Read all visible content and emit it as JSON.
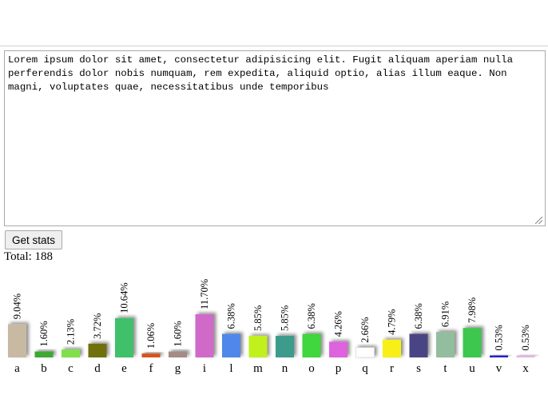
{
  "editor": {
    "text": "Lorem ipsum dolor sit amet, consectetur adipisicing elit. Fugit aliquam aperiam nulla perferendis dolor nobis numquam, rem expedita, aliquid optio, alias illum eaque. Non magni, voluptates quae, necessitatibus unde temporibus"
  },
  "button": {
    "label": "Get stats"
  },
  "total": {
    "label": "Total: 188"
  },
  "chart_data": {
    "type": "bar",
    "title": "",
    "xlabel": "",
    "ylabel": "",
    "ylim": [
      0,
      12
    ],
    "categories": [
      "a",
      "b",
      "c",
      "d",
      "e",
      "f",
      "g",
      "i",
      "l",
      "m",
      "n",
      "o",
      "p",
      "q",
      "r",
      "s",
      "t",
      "u",
      "v",
      "x"
    ],
    "values": [
      9.04,
      1.6,
      2.13,
      3.72,
      10.64,
      1.06,
      1.6,
      11.7,
      6.38,
      5.85,
      5.85,
      6.38,
      4.26,
      2.66,
      4.79,
      6.38,
      6.91,
      7.98,
      0.53,
      0.53
    ],
    "labels": [
      "9.04%",
      "1.60%",
      "2.13%",
      "3.72%",
      "10.64%",
      "1.06%",
      "1.60%",
      "11.70%",
      "6.38%",
      "5.85%",
      "5.85%",
      "6.38%",
      "4.26%",
      "2.66%",
      "4.79%",
      "6.38%",
      "6.91%",
      "7.98%",
      "0.53%",
      "0.53%"
    ],
    "colors": [
      "#c8b9a3",
      "#3da832",
      "#7fe04a",
      "#6f7011",
      "#3fc06a",
      "#d9531e",
      "#a58b86",
      "#d06ac9",
      "#4f88e9",
      "#c2f01a",
      "#3e9b8c",
      "#3fd63d",
      "#df62df",
      "#ffffff",
      "#f8ef12",
      "#4a4585",
      "#92bd9e",
      "#3dc74f",
      "#2020c6",
      "#e5b1e6"
    ]
  }
}
